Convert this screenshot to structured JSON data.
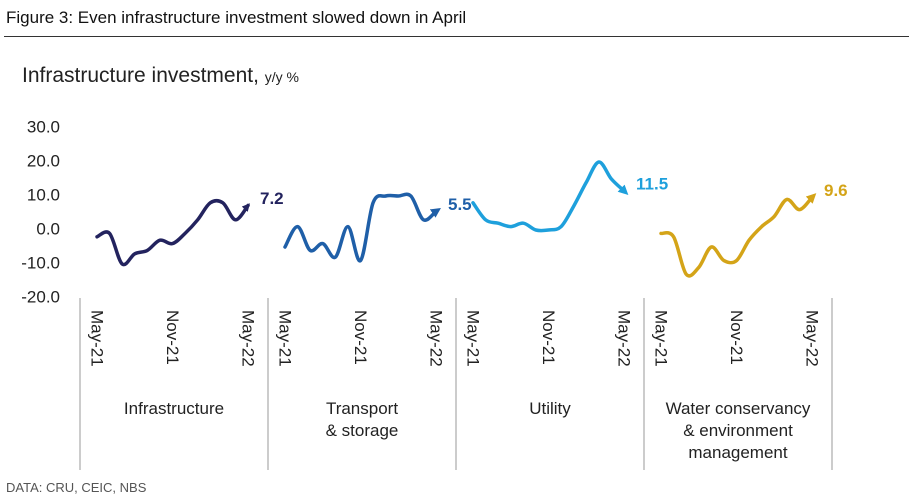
{
  "figure_title": "Figure 3: Even infrastructure investment slowed down in April",
  "source": "DATA: CRU, CEIC, NBS",
  "chart_data": {
    "type": "line",
    "title": "Infrastructure investment,",
    "unit": "y/y %",
    "categories": [
      "May-21",
      null,
      null,
      null,
      null,
      null,
      "Nov-21",
      null,
      null,
      null,
      null,
      null,
      "May-22"
    ],
    "series": [
      {
        "name": "Infrastructure",
        "color": "#23235e",
        "values": [
          -2,
          -1,
          -10,
          -7,
          -6,
          -3,
          -4,
          -1,
          3,
          8,
          8,
          3,
          7.2
        ]
      },
      {
        "name": "Transport\n& storage",
        "color": "#1f5fa8",
        "values": [
          -5,
          1,
          -6,
          -4,
          -8,
          1,
          -9,
          8,
          10,
          10,
          10,
          3,
          5.5
        ]
      },
      {
        "name": "Utility",
        "color": "#1ea0dc",
        "values": [
          8,
          3,
          2,
          1,
          2,
          0,
          0,
          1,
          7,
          14,
          20,
          15,
          11.5
        ]
      },
      {
        "name": "Water conservancy\n& environment\nmanagement",
        "color": "#d4a418",
        "values": [
          -1,
          -2,
          -13,
          -11,
          -5,
          -9,
          -9,
          -3,
          1,
          4,
          9,
          6,
          9.6
        ]
      }
    ],
    "ylim": [
      -20,
      30
    ],
    "yticks": [
      {
        "value": -20,
        "label": "-20.0"
      },
      {
        "value": -10,
        "label": "-10.0"
      },
      {
        "value": 0,
        "label": "0.0"
      },
      {
        "value": 10,
        "label": "10.0"
      },
      {
        "value": 20,
        "label": "20.0"
      },
      {
        "value": 30,
        "label": "30.0"
      }
    ],
    "grid": false
  }
}
